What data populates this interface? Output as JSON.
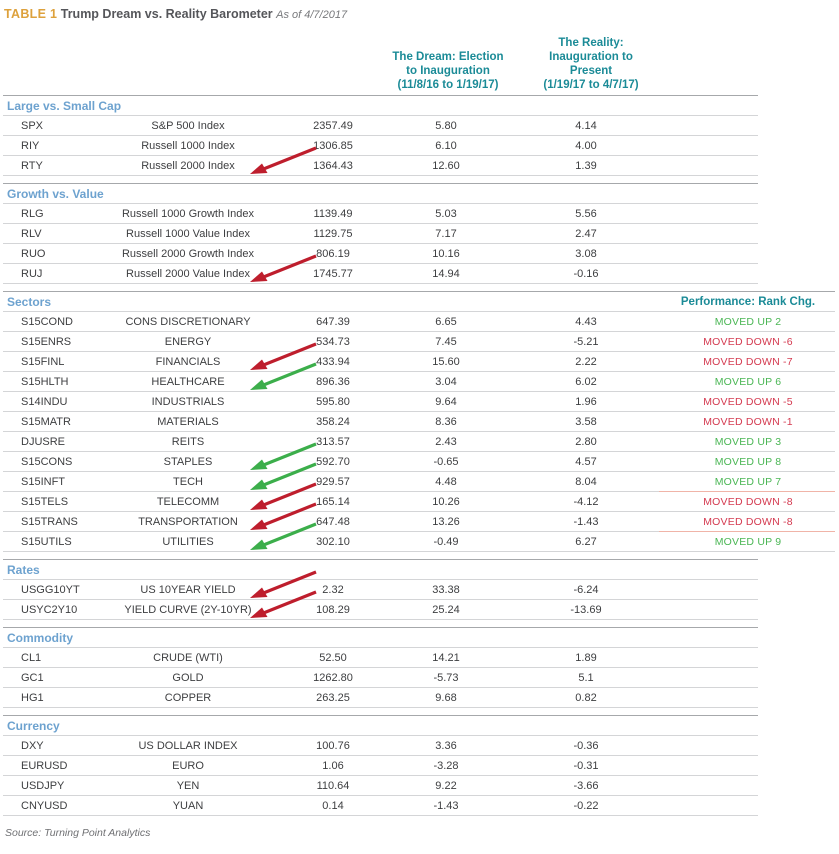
{
  "title": {
    "tag": "TABLE 1",
    "heading": "Trump Dream vs. Reality Barometer",
    "as_of": "As of 4/7/2017"
  },
  "columns": {
    "dream": "The Dream: Election\nto Inauguration\n(11/8/16 to 1/19/17)",
    "reality": "The Reality:\nInauguration to\nPresent\n(1/19/17 to 4/7/17)",
    "performance": "Performance: Rank Chg."
  },
  "colors": {
    "accent_gold": "#dda13c",
    "teal_header": "#1b8b97",
    "section_blue": "#6da2cf",
    "up_green": "#4ab654",
    "down_red": "#d43a50",
    "arrow_red": "#be1e2d",
    "arrow_green": "#3cae4b"
  },
  "sections": [
    {
      "name": "Large vs. Small Cap",
      "show_perf_header": false,
      "rows": [
        {
          "ticker": "SPX",
          "name": "S&P 500 Index",
          "last": "2357.49",
          "dream": "5.80",
          "reality": "4.14"
        },
        {
          "ticker": "RIY",
          "name": "Russell 1000 Index",
          "last": "1306.85",
          "dream": "6.10",
          "reality": "4.00"
        },
        {
          "ticker": "RTY",
          "name": "Russell 2000 Index",
          "last": "1364.43",
          "dream": "12.60",
          "reality": "1.39",
          "arrow": "red"
        }
      ]
    },
    {
      "name": "Growth vs. Value",
      "show_perf_header": false,
      "rows": [
        {
          "ticker": "RLG",
          "name": "Russell 1000 Growth Index",
          "last": "1139.49",
          "dream": "5.03",
          "reality": "5.56"
        },
        {
          "ticker": "RLV",
          "name": "Russell 1000 Value Index",
          "last": "1129.75",
          "dream": "7.17",
          "reality": "2.47"
        },
        {
          "ticker": "RUO",
          "name": "Russell 2000 Growth Index",
          "last": "806.19",
          "dream": "10.16",
          "reality": "3.08"
        },
        {
          "ticker": "RUJ",
          "name": "Russell 2000 Value Index",
          "last": "1745.77",
          "dream": "14.94",
          "reality": "-0.16",
          "arrow": "red"
        }
      ]
    },
    {
      "name": "Sectors",
      "show_perf_header": true,
      "rows": [
        {
          "ticker": "S15COND",
          "name": "CONS DISCRETIONARY",
          "last": "647.39",
          "dream": "6.65",
          "reality": "4.43",
          "perf": "MOVED UP 2",
          "perf_dir": "up"
        },
        {
          "ticker": "S15ENRS",
          "name": "ENERGY",
          "last": "534.73",
          "dream": "7.45",
          "reality": "-5.21",
          "perf": "MOVED DOWN -6",
          "perf_dir": "down"
        },
        {
          "ticker": "S15FINL",
          "name": "FINANCIALS",
          "last": "433.94",
          "dream": "15.60",
          "reality": "2.22",
          "perf": "MOVED DOWN -7",
          "perf_dir": "down",
          "arrow": "red"
        },
        {
          "ticker": "S15HLTH",
          "name": "HEALTHCARE",
          "last": "896.36",
          "dream": "3.04",
          "reality": "6.02",
          "perf": "MOVED UP 6",
          "perf_dir": "up",
          "arrow": "green"
        },
        {
          "ticker": "S14INDU",
          "name": "INDUSTRIALS",
          "last": "595.80",
          "dream": "9.64",
          "reality": "1.96",
          "perf": "MOVED DOWN -5",
          "perf_dir": "down"
        },
        {
          "ticker": "S15MATR",
          "name": "MATERIALS",
          "last": "358.24",
          "dream": "8.36",
          "reality": "3.58",
          "perf": "MOVED DOWN -1",
          "perf_dir": "down"
        },
        {
          "ticker": "DJUSRE",
          "name": "REITS",
          "last": "313.57",
          "dream": "2.43",
          "reality": "2.80",
          "perf": "MOVED UP 3",
          "perf_dir": "up"
        },
        {
          "ticker": "S15CONS",
          "name": "STAPLES",
          "last": "592.70",
          "dream": "-0.65",
          "reality": "4.57",
          "perf": "MOVED UP 8",
          "perf_dir": "up",
          "arrow": "green"
        },
        {
          "ticker": "S15INFT",
          "name": "TECH",
          "last": "929.57",
          "dream": "4.48",
          "reality": "8.04",
          "perf": "MOVED UP 7",
          "perf_dir": "up",
          "arrow": "green",
          "salmon_divider": true
        },
        {
          "ticker": "S15TELS",
          "name": "TELECOMM",
          "last": "165.14",
          "dream": "10.26",
          "reality": "-4.12",
          "perf": "MOVED DOWN -8",
          "perf_dir": "down",
          "arrow": "red"
        },
        {
          "ticker": "S15TRANS",
          "name": "TRANSPORTATION",
          "last": "647.48",
          "dream": "13.26",
          "reality": "-1.43",
          "perf": "MOVED DOWN -8",
          "perf_dir": "down",
          "arrow": "red",
          "salmon_divider": true
        },
        {
          "ticker": "S15UTILS",
          "name": "UTILITIES",
          "last": "302.10",
          "dream": "-0.49",
          "reality": "6.27",
          "perf": "MOVED UP 9",
          "perf_dir": "up",
          "arrow": "green"
        }
      ]
    },
    {
      "name": "Rates",
      "show_perf_header": false,
      "rows": [
        {
          "ticker": "USGG10YT",
          "name": "US 10YEAR YIELD",
          "last": "2.32",
          "dream": "33.38",
          "reality": "-6.24",
          "arrow": "red"
        },
        {
          "ticker": "USYC2Y10",
          "name": "YIELD CURVE (2Y-10YR)",
          "last": "108.29",
          "dream": "25.24",
          "reality": "-13.69",
          "arrow": "red"
        }
      ]
    },
    {
      "name": "Commodity",
      "show_perf_header": false,
      "rows": [
        {
          "ticker": "CL1",
          "name": "CRUDE (WTI)",
          "last": "52.50",
          "dream": "14.21",
          "reality": "1.89"
        },
        {
          "ticker": "GC1",
          "name": "GOLD",
          "last": "1262.80",
          "dream": "-5.73",
          "reality": "5.1"
        },
        {
          "ticker": "HG1",
          "name": "COPPER",
          "last": "263.25",
          "dream": "9.68",
          "reality": "0.82"
        }
      ]
    },
    {
      "name": "Currency",
      "show_perf_header": false,
      "rows": [
        {
          "ticker": "DXY",
          "name": "US DOLLAR INDEX",
          "last": "100.76",
          "dream": "3.36",
          "reality": "-0.36"
        },
        {
          "ticker": "EURUSD",
          "name": "EURO",
          "last": "1.06",
          "dream": "-3.28",
          "reality": "-0.31"
        },
        {
          "ticker": "USDJPY",
          "name": "YEN",
          "last": "110.64",
          "dream": "9.22",
          "reality": "-3.66"
        },
        {
          "ticker": "CNYUSD",
          "name": "YUAN",
          "last": "0.14",
          "dream": "-1.43",
          "reality": "-0.22"
        }
      ]
    }
  ],
  "source": "Source: Turning Point Analytics"
}
